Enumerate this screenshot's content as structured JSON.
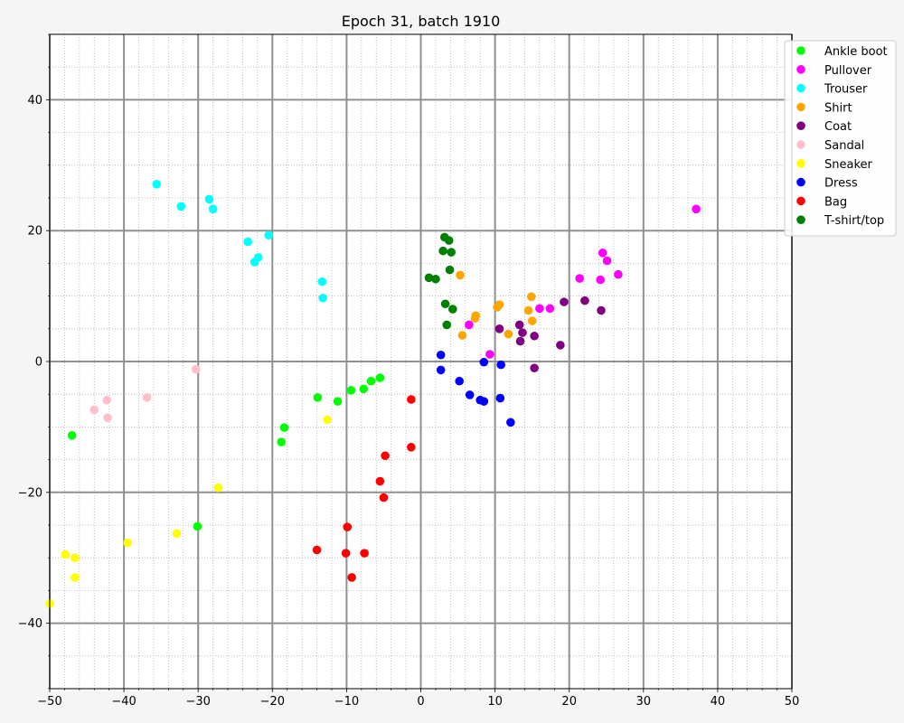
{
  "chart_data": {
    "type": "scatter",
    "title": "Epoch 31, batch 1910",
    "xlabel": "",
    "ylabel": "",
    "xlim": [
      -50,
      50
    ],
    "ylim": [
      -50,
      50
    ],
    "xticks": [
      -50,
      -40,
      -30,
      -20,
      -10,
      0,
      10,
      20,
      30,
      40,
      50
    ],
    "yticks": [
      -40,
      -20,
      0,
      20,
      40
    ],
    "grid": true,
    "minor_grid": true,
    "legend_position": "top-right",
    "series": [
      {
        "name": "Ankle boot",
        "color": "#00ff00",
        "points": [
          [
            -47,
            -11.3
          ],
          [
            -30.1,
            -25.2
          ],
          [
            -18.8,
            -12.3
          ],
          [
            -18.4,
            -10.1
          ],
          [
            -13.9,
            -5.5
          ],
          [
            -11.2,
            -6.1
          ],
          [
            -9.4,
            -4.4
          ],
          [
            -7.7,
            -4.2
          ],
          [
            -6.7,
            -3
          ],
          [
            -5.5,
            -2.5
          ]
        ]
      },
      {
        "name": "Pullover",
        "color": "#ff00ff",
        "points": [
          [
            6.5,
            5.6
          ],
          [
            9.3,
            1.1
          ],
          [
            16,
            8.1
          ],
          [
            17.4,
            8.1
          ],
          [
            21.4,
            12.7
          ],
          [
            24.2,
            12.5
          ],
          [
            24.5,
            16.6
          ],
          [
            25.1,
            15.4
          ],
          [
            26.6,
            13.3
          ],
          [
            37.1,
            23.3
          ]
        ]
      },
      {
        "name": "Trouser",
        "color": "#00ffff",
        "points": [
          [
            -35.6,
            27.1
          ],
          [
            -32.3,
            23.7
          ],
          [
            -28.5,
            24.8
          ],
          [
            -28,
            23.3
          ],
          [
            -23.3,
            18.3
          ],
          [
            -22.4,
            15.2
          ],
          [
            -21.9,
            15.9
          ],
          [
            -20.5,
            19.3
          ],
          [
            -13.3,
            12.2
          ],
          [
            -13.2,
            9.7
          ]
        ]
      },
      {
        "name": "Shirt",
        "color": "#ffa500",
        "points": [
          [
            5.3,
            13.2
          ],
          [
            5.6,
            4
          ],
          [
            7.3,
            6.6
          ],
          [
            7.4,
            7
          ],
          [
            10.3,
            8.3
          ],
          [
            10.6,
            8.7
          ],
          [
            11.8,
            4.2
          ],
          [
            14.5,
            7.8
          ],
          [
            14.9,
            9.9
          ],
          [
            15,
            6.2
          ]
        ]
      },
      {
        "name": "Coat",
        "color": "#800080",
        "points": [
          [
            10.6,
            5
          ],
          [
            13.3,
            5.6
          ],
          [
            13.4,
            3.1
          ],
          [
            13.7,
            4.4
          ],
          [
            15.3,
            3.9
          ],
          [
            15.3,
            -1
          ],
          [
            18.8,
            2.5
          ],
          [
            19.3,
            9.1
          ],
          [
            22.1,
            9.3
          ],
          [
            24.3,
            7.8
          ]
        ]
      },
      {
        "name": "Sandal",
        "color": "#ffc0cb",
        "points": [
          [
            -30.3,
            -1.2
          ],
          [
            -36.9,
            -5.5
          ],
          [
            -42.3,
            -5.9
          ],
          [
            -42.2,
            -8.6
          ],
          [
            -44,
            -7.4
          ]
        ]
      },
      {
        "name": "Sneaker",
        "color": "#ffff00",
        "points": [
          [
            -27.3,
            -19.3
          ],
          [
            -12.6,
            -8.9
          ],
          [
            -32.9,
            -26.3
          ],
          [
            -39.5,
            -27.7
          ],
          [
            -46.6,
            -30
          ],
          [
            -46.6,
            -33
          ],
          [
            -47.9,
            -29.5
          ],
          [
            -50,
            -37
          ]
        ]
      },
      {
        "name": "Dress",
        "color": "#0000ff",
        "points": [
          [
            2.7,
            1
          ],
          [
            2.7,
            -1.3
          ],
          [
            5.2,
            -3
          ],
          [
            6.6,
            -5.1
          ],
          [
            8,
            -5.9
          ],
          [
            8.5,
            -6.1
          ],
          [
            8.5,
            -0.1
          ],
          [
            10.7,
            -5.6
          ],
          [
            10.8,
            -0.5
          ],
          [
            12.1,
            -9.3
          ]
        ]
      },
      {
        "name": "Bag",
        "color": "#ff0000",
        "points": [
          [
            -1.3,
            -5.8
          ],
          [
            -1.3,
            -13.1
          ],
          [
            -4.8,
            -14.4
          ],
          [
            -5.5,
            -18.3
          ],
          [
            -5,
            -20.8
          ],
          [
            -9.9,
            -25.3
          ],
          [
            -14,
            -28.8
          ],
          [
            -10.1,
            -29.3
          ],
          [
            -7.6,
            -29.3
          ],
          [
            -9.3,
            -33
          ]
        ]
      },
      {
        "name": "T-shirt/top",
        "color": "#008000",
        "points": [
          [
            3.2,
            19
          ],
          [
            3.8,
            18.5
          ],
          [
            3,
            16.9
          ],
          [
            4.1,
            16.7
          ],
          [
            3.9,
            14
          ],
          [
            1.1,
            12.8
          ],
          [
            2,
            12.6
          ],
          [
            3.3,
            8.8
          ],
          [
            4.3,
            8
          ],
          [
            3.5,
            5.6
          ]
        ]
      }
    ]
  }
}
